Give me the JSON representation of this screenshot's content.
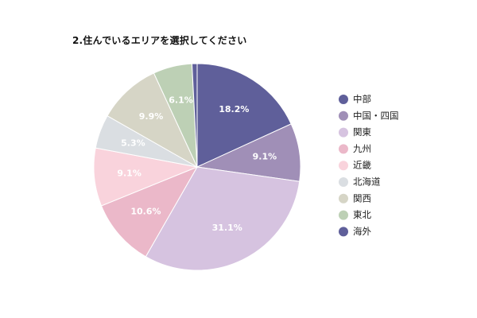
{
  "chart_data": {
    "type": "pie",
    "title": "2.住んでいるエリアを選択してください",
    "start_angle_deg": 0,
    "direction": "clockwise",
    "legend_position": "right",
    "slices": [
      {
        "label": "中部",
        "value": 18.2,
        "display": "18.2%",
        "color": "#5f5f9a",
        "label_color": "#ffffff"
      },
      {
        "label": "中国・四国",
        "value": 9.1,
        "display": "9.1%",
        "color": "#a08fb7",
        "label_color": "#ffffff"
      },
      {
        "label": "関東",
        "value": 31.1,
        "display": "31.1%",
        "color": "#d6c3e0",
        "label_color": "#ffffff"
      },
      {
        "label": "九州",
        "value": 10.6,
        "display": "10.6%",
        "color": "#ebb8c9",
        "label_color": "#ffffff"
      },
      {
        "label": "近畿",
        "value": 9.1,
        "display": "9.1%",
        "color": "#f9d3dc",
        "label_color": "#ffffff"
      },
      {
        "label": "北海道",
        "value": 5.3,
        "display": "5.3%",
        "color": "#dadee2",
        "label_color": "#ffffff"
      },
      {
        "label": "関西",
        "value": 9.9,
        "display": "9.9%",
        "color": "#d6d5c6",
        "label_color": "#ffffff"
      },
      {
        "label": "東北",
        "value": 6.1,
        "display": "6.1%",
        "color": "#bdd0b5",
        "label_color": "#ffffff"
      },
      {
        "label": "海外",
        "value": 0.8,
        "display": "",
        "color": "#5f5f9a",
        "label_color": "#ffffff"
      }
    ]
  }
}
